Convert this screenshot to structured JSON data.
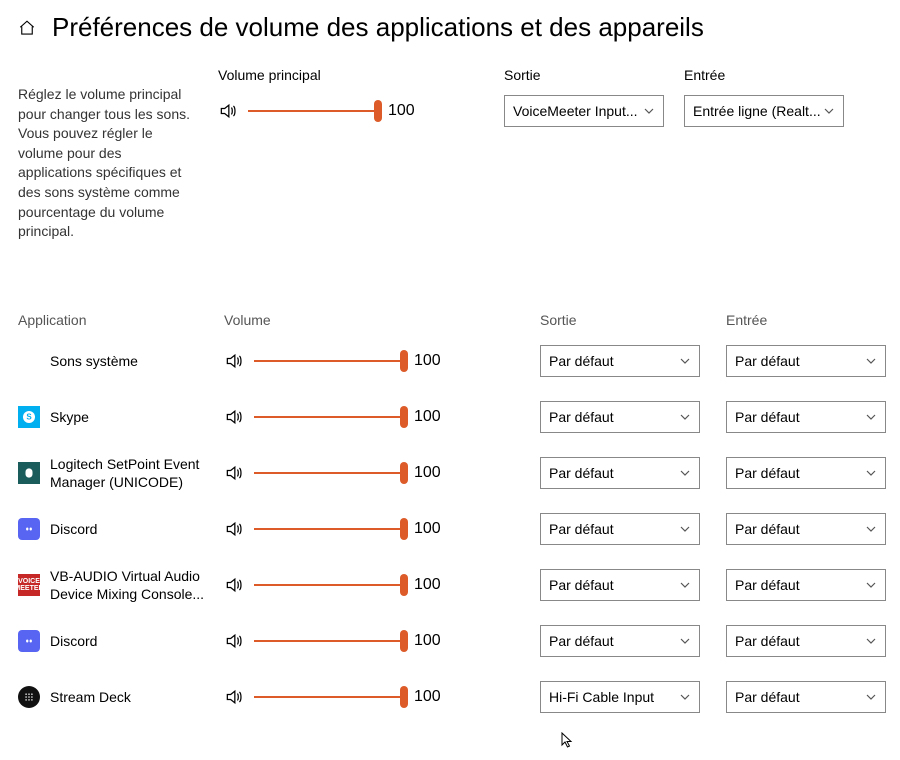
{
  "page_title": "Préférences de volume des applications et des appareils",
  "description": "Réglez le volume principal pour changer tous les sons. Vous pouvez régler le volume pour des applications spécifiques et des sons système comme pourcentage du volume principal.",
  "master": {
    "label": "Volume principal",
    "value": 100,
    "value_text": "100",
    "slider_percent": 100
  },
  "output": {
    "label": "Sortie",
    "selected": "VoiceMeeter Input..."
  },
  "input": {
    "label": "Entrée",
    "selected": "Entrée ligne (Realt..."
  },
  "app_headers": {
    "app": "Application",
    "volume": "Volume",
    "output": "Sortie",
    "input": "Entrée"
  },
  "default_text": "Par défaut",
  "apps": [
    {
      "name": "Sons système",
      "icon": "none",
      "icon_bg": "transparent",
      "icon_letter": "",
      "volume": 100,
      "volume_text": "100",
      "output": "Par défaut",
      "input": "Par défaut"
    },
    {
      "name": "Skype",
      "icon": "skype",
      "icon_bg": "#00aff0",
      "icon_letter": "S",
      "volume": 100,
      "volume_text": "100",
      "output": "Par défaut",
      "input": "Par défaut"
    },
    {
      "name": "Logitech SetPoint Event Manager (UNICODE)",
      "icon": "logitech",
      "icon_bg": "#1a5c5c",
      "icon_letter": "",
      "volume": 100,
      "volume_text": "100",
      "output": "Par défaut",
      "input": "Par défaut"
    },
    {
      "name": "Discord",
      "icon": "discord",
      "icon_bg": "#5865f2",
      "icon_letter": "",
      "volume": 100,
      "volume_text": "100",
      "output": "Par défaut",
      "input": "Par défaut"
    },
    {
      "name": "VB-AUDIO Virtual Audio Device Mixing Console...",
      "icon": "vb",
      "icon_bg": "#c62828",
      "icon_letter": "VB",
      "volume": 100,
      "volume_text": "100",
      "output": "Par défaut",
      "input": "Par défaut"
    },
    {
      "name": "Discord",
      "icon": "discord",
      "icon_bg": "#5865f2",
      "icon_letter": "",
      "volume": 100,
      "volume_text": "100",
      "output": "Par défaut",
      "input": "Par défaut"
    },
    {
      "name": "Stream Deck",
      "icon": "streamdeck",
      "icon_bg": "#111",
      "icon_letter": "",
      "volume": 100,
      "volume_text": "100",
      "output": "Hi-Fi Cable Input",
      "input": "Par défaut"
    }
  ],
  "colors": {
    "accent": "#dc5b29",
    "border": "#888",
    "text": "#000",
    "muted": "#555",
    "bg": "#ffffff"
  }
}
